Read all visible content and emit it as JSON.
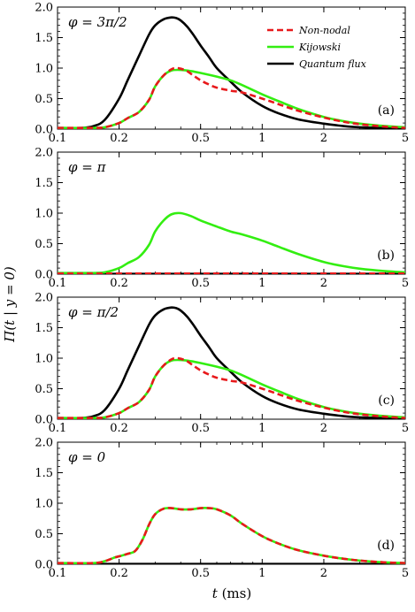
{
  "chart_data": {
    "type": "line",
    "x_scale": "log",
    "xlim": [
      0.1,
      5
    ],
    "ylim": [
      0,
      2
    ],
    "xticks": [
      0.1,
      0.2,
      0.5,
      1,
      2,
      5
    ],
    "xtick_labels": [
      "0.1",
      "0.2",
      "0.5",
      "1",
      "2",
      "5"
    ],
    "yticks": [
      0.0,
      0.5,
      1.0,
      1.5,
      2.0
    ],
    "ytick_labels": [
      "0.0",
      "0.5",
      "1.0",
      "1.5",
      "2.0"
    ],
    "xlabel_var": "t",
    "xlabel_unit": " (ms)",
    "ylabel": "Π(t | y = 0)",
    "legend": {
      "placement": "top-right, panel (a)",
      "entries": [
        {
          "name": "Non-nodal",
          "color": "#e8191b",
          "style": "dashed"
        },
        {
          "name": "Kijowski",
          "color": "#33ee11",
          "style": "solid"
        },
        {
          "name": "Quantum flux",
          "color": "#000000",
          "style": "solid"
        }
      ]
    },
    "panels": [
      {
        "tag": "(a)",
        "phi": "φ = 3π/2",
        "series": {
          "quantum": {
            "x": [
              0.1,
              0.13,
              0.15,
              0.17,
              0.2,
              0.22,
              0.25,
              0.28,
              0.3,
              0.33,
              0.36,
              0.38,
              0.4,
              0.43,
              0.46,
              0.5,
              0.55,
              0.6,
              0.7,
              0.8,
              1.0,
              1.2,
              1.5,
              2.0,
              2.5,
              3.0,
              4.0,
              5.0
            ],
            "y": [
              0.02,
              0.02,
              0.05,
              0.15,
              0.5,
              0.8,
              1.2,
              1.55,
              1.7,
              1.8,
              1.83,
              1.82,
              1.78,
              1.68,
              1.55,
              1.37,
              1.18,
              1.0,
              0.78,
              0.6,
              0.38,
              0.26,
              0.16,
              0.09,
              0.05,
              0.03,
              0.02,
              0.01
            ]
          },
          "kijowski": {
            "x": [
              0.1,
              0.15,
              0.17,
              0.2,
              0.22,
              0.25,
              0.28,
              0.3,
              0.33,
              0.36,
              0.4,
              0.45,
              0.5,
              0.6,
              0.7,
              0.8,
              1.0,
              1.2,
              1.5,
              2.0,
              2.5,
              3.0,
              4.0,
              5.0
            ],
            "y": [
              0.02,
              0.02,
              0.03,
              0.1,
              0.18,
              0.28,
              0.48,
              0.7,
              0.88,
              0.96,
              0.97,
              0.95,
              0.92,
              0.86,
              0.8,
              0.72,
              0.57,
              0.46,
              0.33,
              0.2,
              0.13,
              0.09,
              0.05,
              0.03
            ]
          },
          "nonnodal": {
            "x": [
              0.1,
              0.15,
              0.17,
              0.2,
              0.22,
              0.25,
              0.28,
              0.3,
              0.33,
              0.36,
              0.38,
              0.4,
              0.43,
              0.46,
              0.5,
              0.55,
              0.6,
              0.7,
              0.8,
              1.0,
              1.2,
              1.5,
              2.0,
              2.5,
              3.0,
              4.0,
              5.0
            ],
            "y": [
              0.02,
              0.02,
              0.03,
              0.1,
              0.18,
              0.28,
              0.48,
              0.7,
              0.88,
              0.98,
              1.0,
              0.99,
              0.95,
              0.88,
              0.8,
              0.73,
              0.68,
              0.63,
              0.6,
              0.5,
              0.41,
              0.3,
              0.19,
              0.12,
              0.08,
              0.04,
              0.02
            ]
          }
        }
      },
      {
        "tag": "(b)",
        "phi": "φ = π",
        "series": {
          "quantum": {
            "x": [
              0.1,
              5.0
            ],
            "y": [
              0.005,
              0.005
            ]
          },
          "kijowski": {
            "x": [
              0.1,
              0.15,
              0.17,
              0.2,
              0.22,
              0.25,
              0.28,
              0.3,
              0.33,
              0.36,
              0.4,
              0.45,
              0.5,
              0.6,
              0.7,
              0.8,
              1.0,
              1.2,
              1.5,
              2.0,
              2.5,
              3.0,
              4.0,
              5.0
            ],
            "y": [
              0.02,
              0.02,
              0.03,
              0.1,
              0.18,
              0.28,
              0.48,
              0.7,
              0.88,
              0.98,
              1.0,
              0.95,
              0.88,
              0.78,
              0.7,
              0.65,
              0.55,
              0.45,
              0.33,
              0.2,
              0.13,
              0.09,
              0.05,
              0.03
            ]
          },
          "nonnodal": {
            "x": [
              0.1,
              5.0
            ],
            "y": [
              0.01,
              0.01
            ]
          }
        }
      },
      {
        "tag": "(c)",
        "phi": "φ = π/2",
        "series": {
          "quantum": {
            "x": [
              0.1,
              0.13,
              0.15,
              0.17,
              0.2,
              0.22,
              0.25,
              0.28,
              0.3,
              0.33,
              0.36,
              0.38,
              0.4,
              0.43,
              0.46,
              0.5,
              0.55,
              0.6,
              0.7,
              0.8,
              1.0,
              1.2,
              1.5,
              2.0,
              2.5,
              3.0,
              4.0,
              5.0
            ],
            "y": [
              0.02,
              0.02,
              0.05,
              0.15,
              0.5,
              0.8,
              1.2,
              1.55,
              1.7,
              1.8,
              1.83,
              1.82,
              1.78,
              1.68,
              1.55,
              1.37,
              1.18,
              1.0,
              0.78,
              0.6,
              0.38,
              0.26,
              0.16,
              0.09,
              0.05,
              0.03,
              0.02,
              0.01
            ]
          },
          "kijowski": {
            "x": [
              0.1,
              0.15,
              0.17,
              0.2,
              0.22,
              0.25,
              0.28,
              0.3,
              0.33,
              0.36,
              0.4,
              0.45,
              0.5,
              0.6,
              0.7,
              0.8,
              1.0,
              1.2,
              1.5,
              2.0,
              2.5,
              3.0,
              4.0,
              5.0
            ],
            "y": [
              0.02,
              0.02,
              0.03,
              0.1,
              0.18,
              0.28,
              0.48,
              0.7,
              0.88,
              0.96,
              0.97,
              0.95,
              0.92,
              0.86,
              0.8,
              0.72,
              0.57,
              0.46,
              0.33,
              0.2,
              0.13,
              0.09,
              0.05,
              0.03
            ]
          },
          "nonnodal": {
            "x": [
              0.1,
              0.15,
              0.17,
              0.2,
              0.22,
              0.25,
              0.28,
              0.3,
              0.33,
              0.36,
              0.38,
              0.4,
              0.43,
              0.46,
              0.5,
              0.55,
              0.6,
              0.7,
              0.8,
              1.0,
              1.2,
              1.5,
              2.0,
              2.5,
              3.0,
              4.0,
              5.0
            ],
            "y": [
              0.02,
              0.02,
              0.03,
              0.1,
              0.18,
              0.28,
              0.48,
              0.7,
              0.88,
              0.98,
              1.0,
              0.99,
              0.95,
              0.88,
              0.8,
              0.73,
              0.68,
              0.63,
              0.6,
              0.5,
              0.41,
              0.3,
              0.19,
              0.12,
              0.08,
              0.04,
              0.02
            ]
          }
        }
      },
      {
        "tag": "(d)",
        "phi": "φ = 0",
        "series": {
          "quantum": {
            "x": [
              0.1,
              5.0
            ],
            "y": [
              0.005,
              0.005
            ]
          },
          "kijowski": {
            "x": [
              0.1,
              0.15,
              0.17,
              0.19,
              0.2,
              0.22,
              0.24,
              0.26,
              0.28,
              0.3,
              0.33,
              0.36,
              0.4,
              0.45,
              0.5,
              0.55,
              0.6,
              0.7,
              0.8,
              1.0,
              1.2,
              1.5,
              2.0,
              2.5,
              3.0,
              4.0,
              5.0
            ],
            "y": [
              0.02,
              0.02,
              0.05,
              0.11,
              0.13,
              0.17,
              0.22,
              0.4,
              0.65,
              0.82,
              0.91,
              0.92,
              0.9,
              0.9,
              0.92,
              0.92,
              0.9,
              0.8,
              0.66,
              0.46,
              0.34,
              0.23,
              0.14,
              0.09,
              0.06,
              0.03,
              0.02
            ]
          },
          "nonnodal": {
            "x": [
              0.1,
              0.15,
              0.17,
              0.19,
              0.2,
              0.22,
              0.24,
              0.26,
              0.28,
              0.3,
              0.33,
              0.36,
              0.4,
              0.45,
              0.5,
              0.55,
              0.6,
              0.7,
              0.8,
              1.0,
              1.2,
              1.5,
              2.0,
              2.5,
              3.0,
              4.0,
              5.0
            ],
            "y": [
              0.02,
              0.02,
              0.05,
              0.11,
              0.13,
              0.17,
              0.22,
              0.4,
              0.65,
              0.82,
              0.91,
              0.92,
              0.9,
              0.9,
              0.92,
              0.92,
              0.9,
              0.8,
              0.66,
              0.46,
              0.34,
              0.23,
              0.14,
              0.09,
              0.06,
              0.03,
              0.02
            ]
          }
        }
      }
    ]
  }
}
